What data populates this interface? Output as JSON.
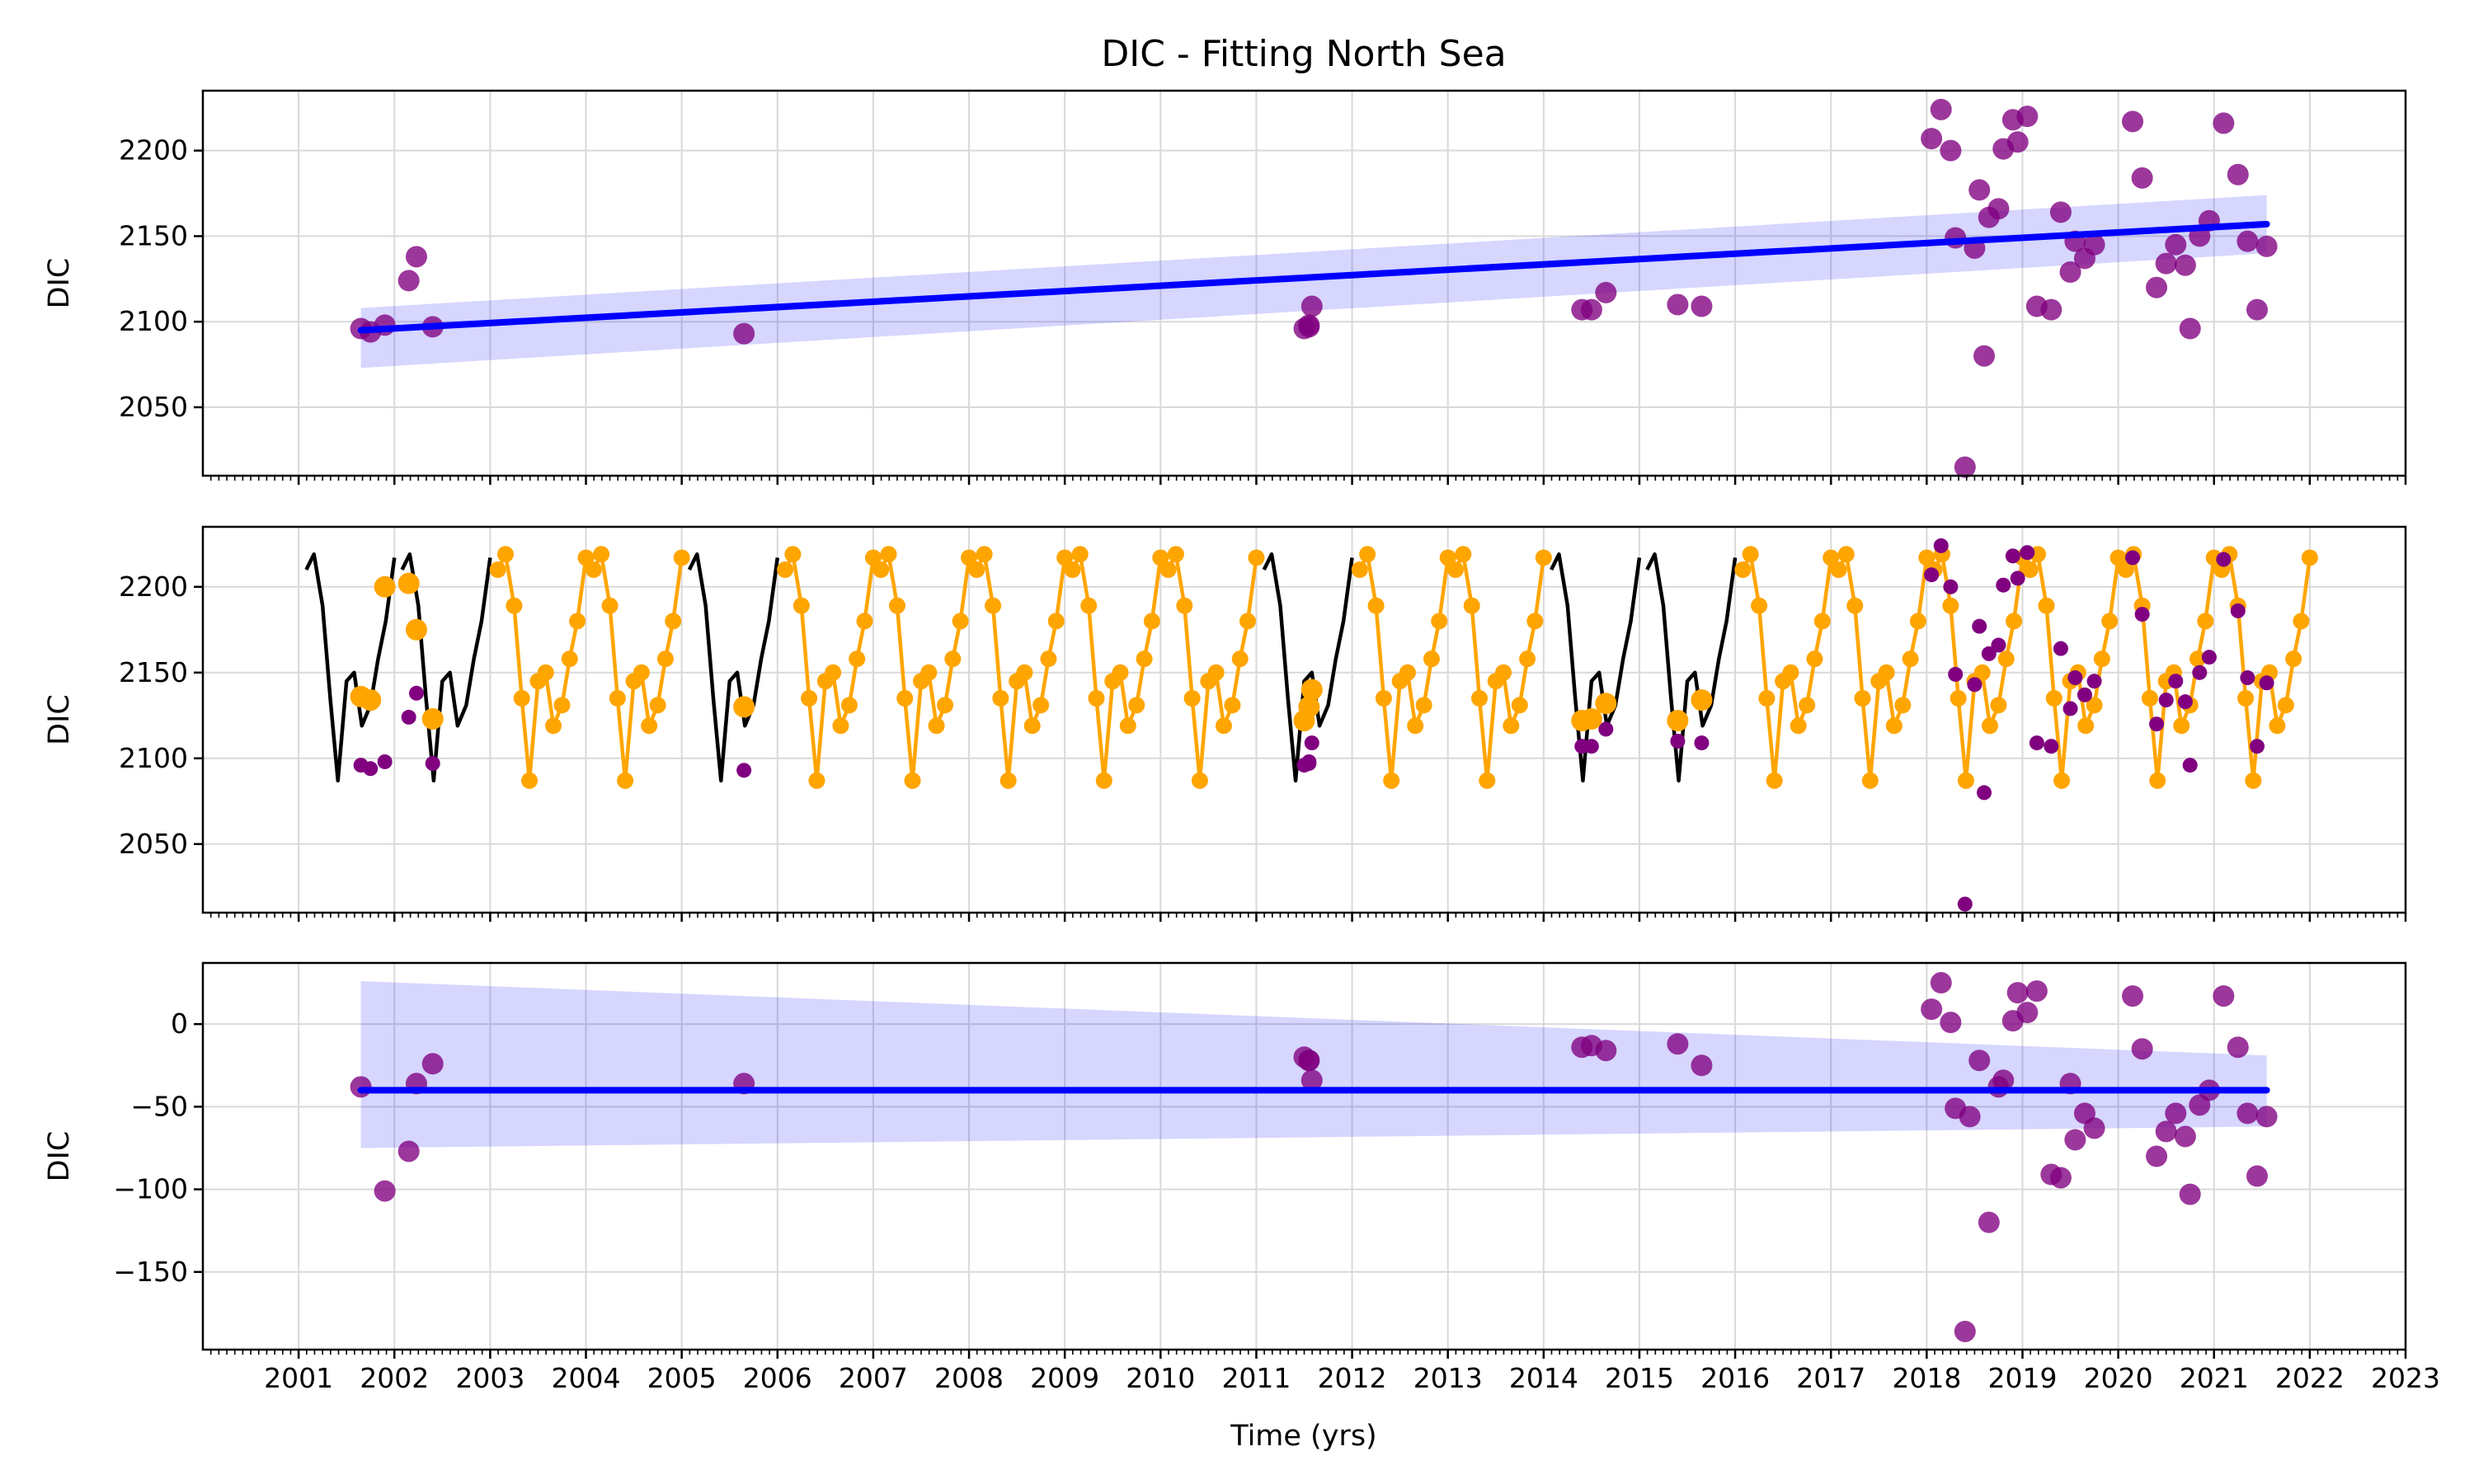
{
  "title": "DIC - Fitting North Sea",
  "xlabel": "Time (yrs)",
  "chart_data": [
    {
      "type": "scatter",
      "panel": "top",
      "ylabel": "DIC",
      "xlim": [
        2000.0,
        2023.0
      ],
      "ylim": [
        2010,
        2235
      ],
      "yticks": [
        2050,
        2100,
        2150,
        2200
      ],
      "grid": true,
      "observations": {
        "color": "#800080",
        "x": [
          2001.65,
          2001.75,
          2001.9,
          2002.15,
          2002.23,
          2002.4,
          2005.65,
          2011.5,
          2011.55,
          2011.58,
          2011.55,
          2014.4,
          2014.5,
          2014.65,
          2015.4,
          2015.65,
          2018.05,
          2018.15,
          2018.25,
          2018.3,
          2018.4,
          2018.5,
          2018.55,
          2018.6,
          2018.65,
          2018.75,
          2018.8,
          2018.9,
          2018.95,
          2019.05,
          2019.15,
          2019.3,
          2019.4,
          2019.5,
          2019.55,
          2019.65,
          2019.75,
          2020.15,
          2020.25,
          2020.4,
          2020.5,
          2020.6,
          2020.7,
          2020.75,
          2020.85,
          2020.95,
          2021.1,
          2021.25,
          2021.35,
          2021.45,
          2021.55
        ],
        "y": [
          2096,
          2094,
          2098,
          2124,
          2138,
          2097,
          2093,
          2096,
          2098,
          2109,
          2097,
          2107,
          2107,
          2117,
          2110,
          2109,
          2207,
          2224,
          2200,
          2149,
          2015,
          2143,
          2177,
          2080,
          2161,
          2166,
          2201,
          2218,
          2205,
          2220,
          2109,
          2107,
          2164,
          2129,
          2147,
          2137,
          2145,
          2217,
          2184,
          2120,
          2134,
          2145,
          2133,
          2096,
          2150,
          2159,
          2216,
          2186,
          2147,
          2107,
          2144
        ]
      },
      "trend": {
        "color": "#0000ff",
        "x": [
          2001.65,
          2021.55
        ],
        "y": [
          2095,
          2157
        ],
        "band_upper": [
          2108,
          2174
        ],
        "band_lower": [
          2073,
          2140
        ]
      }
    },
    {
      "type": "line",
      "panel": "middle",
      "ylabel": "DIC",
      "xlim": [
        2000.0,
        2023.0
      ],
      "ylim": [
        2010,
        2235
      ],
      "yticks": [
        2050,
        2100,
        2150,
        2200
      ],
      "grid": true,
      "series": [
        {
          "role": "seasonal model (black)",
          "color": "#000000",
          "cycle_offsets": [
            0.08,
            0.16,
            0.25,
            0.33,
            0.41,
            0.5,
            0.58,
            0.66,
            0.75,
            0.83,
            0.91,
            1.0
          ],
          "cycle_values": [
            2210,
            2219,
            2189,
            2135,
            2087,
            2145,
            2150,
            2119,
            2131,
            2158,
            2180,
            2217
          ],
          "year_starts": [
            2001,
            2002,
            2005,
            2011,
            2014,
            2015
          ]
        },
        {
          "role": "seasonal model with markers (orange)",
          "color": "#ffa500",
          "cycle_offsets": [
            0.08,
            0.16,
            0.25,
            0.33,
            0.41,
            0.5,
            0.58,
            0.66,
            0.75,
            0.83,
            0.91,
            1.0
          ],
          "cycle_values": [
            2210,
            2219,
            2189,
            2135,
            2087,
            2145,
            2150,
            2119,
            2131,
            2158,
            2180,
            2217
          ],
          "year_starts": [
            2003,
            2004,
            2006,
            2007,
            2008,
            2009,
            2010,
            2012,
            2013,
            2016,
            2017,
            2018,
            2019,
            2020,
            2021
          ]
        }
      ],
      "orange_points_at_observations": [
        [
          2001.65,
          2136
        ],
        [
          2001.75,
          2134
        ],
        [
          2001.9,
          2200
        ],
        [
          2002.15,
          2202
        ],
        [
          2002.23,
          2175
        ],
        [
          2002.4,
          2123
        ],
        [
          2005.65,
          2130
        ],
        [
          2011.5,
          2122
        ],
        [
          2011.55,
          2130
        ],
        [
          2011.58,
          2140
        ],
        [
          2014.4,
          2122
        ],
        [
          2014.5,
          2123
        ],
        [
          2014.65,
          2132
        ],
        [
          2015.4,
          2122
        ],
        [
          2015.65,
          2134
        ]
      ],
      "observations": {
        "color": "#800080",
        "x": [
          2001.65,
          2001.75,
          2001.9,
          2002.15,
          2002.23,
          2002.4,
          2005.65,
          2011.5,
          2011.55,
          2011.58,
          2011.55,
          2014.4,
          2014.5,
          2014.65,
          2015.4,
          2015.65,
          2018.05,
          2018.15,
          2018.25,
          2018.3,
          2018.4,
          2018.5,
          2018.55,
          2018.6,
          2018.65,
          2018.75,
          2018.8,
          2018.9,
          2018.95,
          2019.05,
          2019.15,
          2019.3,
          2019.4,
          2019.5,
          2019.55,
          2019.65,
          2019.75,
          2020.15,
          2020.25,
          2020.4,
          2020.5,
          2020.6,
          2020.7,
          2020.75,
          2020.85,
          2020.95,
          2021.1,
          2021.25,
          2021.35,
          2021.45,
          2021.55
        ],
        "y": [
          2096,
          2094,
          2098,
          2124,
          2138,
          2097,
          2093,
          2096,
          2098,
          2109,
          2097,
          2107,
          2107,
          2117,
          2110,
          2109,
          2207,
          2224,
          2200,
          2149,
          2015,
          2143,
          2177,
          2080,
          2161,
          2166,
          2201,
          2218,
          2205,
          2220,
          2109,
          2107,
          2164,
          2129,
          2147,
          2137,
          2145,
          2217,
          2184,
          2120,
          2134,
          2145,
          2133,
          2096,
          2150,
          2159,
          2216,
          2186,
          2147,
          2107,
          2144
        ]
      }
    },
    {
      "type": "scatter",
      "panel": "bottom",
      "ylabel": "DIC",
      "xlim": [
        2000.0,
        2023.0
      ],
      "ylim": [
        -197,
        37
      ],
      "yticks": [
        -150,
        -100,
        -50,
        0
      ],
      "ytick_labels": [
        "−150",
        "−100",
        "−50",
        "0"
      ],
      "grid": true,
      "observations": {
        "color": "#800080",
        "x": [
          2001.65,
          2001.9,
          2002.15,
          2002.23,
          2002.4,
          2005.65,
          2011.5,
          2011.55,
          2011.58,
          2011.55,
          2014.4,
          2014.5,
          2014.65,
          2015.4,
          2015.65,
          2018.05,
          2018.15,
          2018.25,
          2018.3,
          2018.4,
          2018.45,
          2018.55,
          2018.65,
          2018.75,
          2018.8,
          2018.9,
          2018.95,
          2019.05,
          2019.15,
          2019.3,
          2019.4,
          2019.5,
          2019.55,
          2019.65,
          2019.75,
          2020.15,
          2020.25,
          2020.4,
          2020.5,
          2020.6,
          2020.7,
          2020.75,
          2020.85,
          2020.95,
          2021.1,
          2021.25,
          2021.35,
          2021.45,
          2021.55
        ],
        "y": [
          -38,
          -101,
          -77,
          -36,
          -24,
          -36,
          -20,
          -22,
          -34,
          -22,
          -14,
          -13,
          -16,
          -12,
          -25,
          9,
          25,
          1,
          -51,
          -186,
          -56,
          -22,
          -120,
          -38,
          -34,
          2,
          19,
          7,
          20,
          -91,
          -93,
          -36,
          -70,
          -54,
          -63,
          17,
          -15,
          -80,
          -65,
          -54,
          -68,
          -103,
          -49,
          -40,
          17,
          -14,
          -54,
          -92,
          -56
        ]
      },
      "trend": {
        "color": "#0000ff",
        "x": [
          2001.65,
          2021.55
        ],
        "y": [
          -40,
          -40
        ],
        "band_upper": [
          26,
          -19
        ],
        "band_lower": [
          -75,
          -62
        ]
      }
    }
  ],
  "xticks": [
    2001,
    2002,
    2003,
    2004,
    2005,
    2006,
    2007,
    2008,
    2009,
    2010,
    2011,
    2012,
    2013,
    2014,
    2015,
    2016,
    2017,
    2018,
    2019,
    2020,
    2021,
    2022,
    2023
  ]
}
